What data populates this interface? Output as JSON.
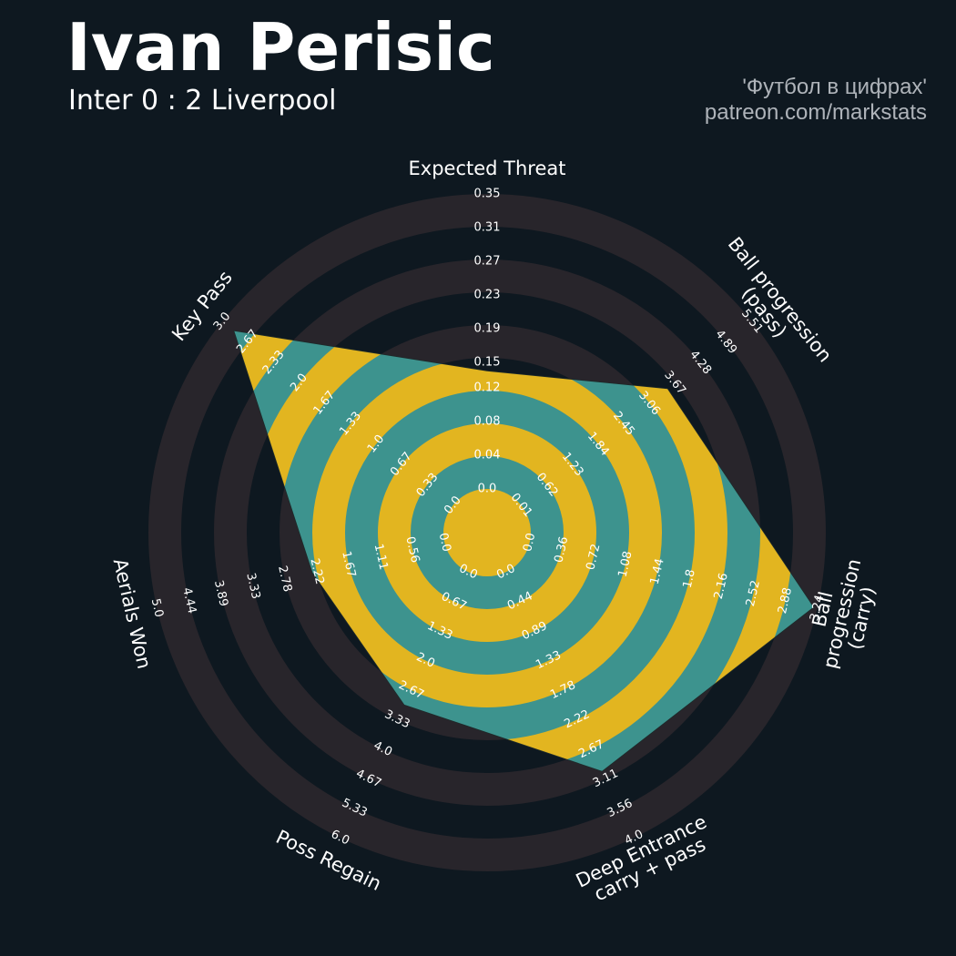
{
  "chart_data": {
    "type": "radar",
    "title": "Ivan Perisic",
    "subtitle": "Inter 0 : 2 Liverpool",
    "credits": [
      "'Футбол в цифрах'",
      "patreon.com/markstats"
    ],
    "params": [
      "Expected Threat",
      "Ball progression (pass)",
      "Ball progression (carry)",
      "Deep Entrance\ncarry + pass",
      "Poss Regain",
      "Aerials Won",
      "Key Pass"
    ],
    "values": [
      0.14,
      3.5,
      3.2,
      3.0,
      3.0,
      2.3,
      2.85
    ],
    "color": "#3d938e",
    "ring_color": "#e2b520",
    "background_ring_color": "#28252b",
    "rlims": [
      [
        0,
        0.35
      ],
      [
        0.01,
        5.51
      ],
      [
        0,
        3.24
      ],
      [
        0,
        4
      ],
      [
        0,
        6
      ],
      [
        0,
        5
      ],
      [
        0,
        3
      ]
    ],
    "ticks": [
      [
        {
          "value": 0,
          "label": "0.0"
        },
        0.04,
        0.08,
        0.12,
        0.15,
        0.19,
        0.23,
        0.27,
        0.31,
        0.35
      ],
      [
        0.01,
        0.62,
        1.23,
        1.84,
        2.45,
        3.06,
        3.67,
        4.28,
        4.89,
        5.51
      ],
      [
        {
          "value": 0,
          "label": "0.0"
        },
        0.36,
        0.72,
        1.08,
        1.44,
        1.8,
        2.16,
        2.52,
        2.88,
        3.24
      ],
      [
        {
          "value": 0,
          "label": "0.0"
        },
        0.44,
        0.89,
        1.33,
        1.78,
        2.22,
        2.67,
        3.11,
        3.56,
        {
          "value": 4,
          "label": "4.0"
        }
      ],
      [
        {
          "value": 0,
          "label": "0.0"
        },
        0.67,
        1.33,
        {
          "value": 2,
          "label": "2.0"
        },
        2.67,
        3.33,
        {
          "value": 4,
          "label": "4.0"
        },
        4.67,
        5.33,
        {
          "value": 6,
          "label": "6.0"
        }
      ],
      [
        {
          "value": 0,
          "label": "0.0"
        },
        0.56,
        1.11,
        1.67,
        2.22,
        2.78,
        3.33,
        3.89,
        4.44,
        {
          "value": 5,
          "label": "5.0"
        }
      ],
      [
        {
          "value": 0,
          "label": "0.0"
        },
        0.33,
        0.67,
        {
          "value": 1,
          "label": "1.0"
        },
        1.33,
        1.67,
        {
          "value": 2,
          "label": "2.0"
        },
        2.33,
        2.67,
        {
          "value": 3,
          "label": "3.0"
        }
      ]
    ]
  }
}
